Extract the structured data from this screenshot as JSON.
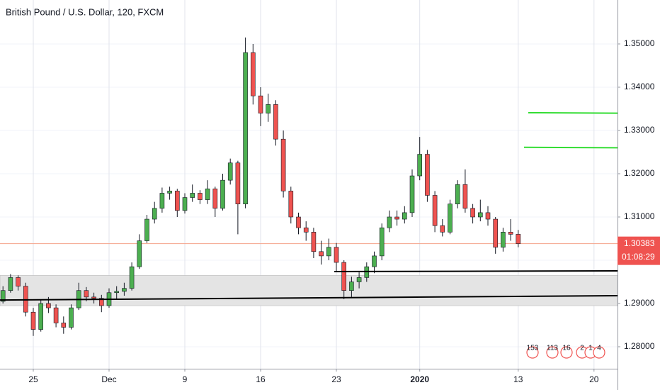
{
  "chart_data": {
    "type": "candlestick",
    "title": "British Pound / U.S. Dollar, 120, FXCM",
    "categories": [
      null,
      null,
      null,
      null,
      "25",
      null,
      null,
      null,
      null,
      null,
      null,
      null,
      null,
      null,
      "Dec",
      null,
      null,
      null,
      null,
      null,
      null,
      null,
      null,
      null,
      "9",
      null,
      null,
      null,
      null,
      null,
      null,
      null,
      null,
      null,
      "16",
      null,
      null,
      null,
      null,
      null,
      null,
      null,
      null,
      null,
      "23",
      null,
      null,
      null,
      null,
      null,
      null,
      null,
      null,
      null,
      null,
      "2020",
      null,
      null,
      null,
      null,
      null,
      null,
      null,
      null,
      null,
      null,
      null,
      null,
      "13",
      null,
      null,
      null,
      null,
      null,
      null,
      null,
      null,
      null,
      "20"
    ],
    "open": [
      1.2905,
      1.293,
      1.296,
      1.294,
      1.288,
      1.284,
      1.29,
      1.289,
      1.2855,
      1.2845,
      1.289,
      1.293,
      1.2915,
      1.2912,
      1.2895,
      1.2925,
      1.2928,
      1.2935,
      1.2985,
      1.3045,
      1.3095,
      1.312,
      1.3155,
      1.316,
      1.3115,
      1.3145,
      1.3155,
      1.314,
      1.3165,
      1.312,
      1.3185,
      1.3225,
      1.313,
      1.348,
      1.338,
      1.334,
      1.336,
      1.328,
      1.316,
      1.31,
      1.3075,
      1.3065,
      1.302,
      1.301,
      1.303,
      1.2995,
      1.293,
      1.295,
      1.296,
      1.2985,
      1.301,
      1.3075,
      1.31,
      1.3095,
      1.311,
      1.3195,
      1.3245,
      1.315,
      1.308,
      1.3065,
      1.313,
      1.3175,
      1.312,
      1.31,
      1.311,
      1.3095,
      1.303,
      1.3065,
      1.306,
      null,
      null,
      null,
      null,
      null,
      null,
      null,
      null,
      null,
      null
    ],
    "high": [
      1.294,
      1.2968,
      1.2965,
      1.2948,
      1.289,
      1.2908,
      1.2915,
      1.2898,
      1.287,
      1.2898,
      1.2948,
      1.2938,
      1.2925,
      1.292,
      1.2935,
      1.294,
      1.2948,
      1.2995,
      1.306,
      1.3105,
      1.3135,
      1.3168,
      1.317,
      1.3165,
      1.3155,
      1.3175,
      1.3162,
      1.3185,
      1.317,
      1.32,
      1.3235,
      1.323,
      1.3515,
      1.35,
      1.34,
      1.3385,
      1.337,
      1.33,
      1.317,
      1.311,
      1.309,
      1.3075,
      1.3045,
      1.305,
      1.304,
      1.3,
      1.2962,
      1.2972,
      1.2995,
      1.302,
      1.3085,
      1.3115,
      1.3115,
      1.3125,
      1.321,
      1.3285,
      1.3255,
      1.316,
      1.3095,
      1.314,
      1.3185,
      1.321,
      1.313,
      1.314,
      1.3125,
      1.31,
      1.3075,
      1.3095,
      1.307,
      null,
      null,
      null,
      null,
      null,
      null,
      null,
      null,
      null,
      null
    ],
    "low": [
      1.29,
      1.2925,
      1.293,
      1.287,
      1.2825,
      1.2835,
      1.2878,
      1.2845,
      1.283,
      1.284,
      1.2885,
      1.2905,
      1.29,
      1.288,
      1.289,
      1.291,
      1.2918,
      1.293,
      1.298,
      1.304,
      1.3085,
      1.311,
      1.314,
      1.31,
      1.3108,
      1.3135,
      1.313,
      1.313,
      1.31,
      1.3115,
      1.3175,
      1.306,
      1.312,
      1.336,
      1.331,
      1.332,
      1.3265,
      1.3145,
      1.3085,
      1.306,
      1.3045,
      1.3005,
      1.299,
      1.3,
      1.2975,
      1.291,
      1.2915,
      1.2935,
      1.295,
      1.297,
      1.3,
      1.3065,
      1.308,
      1.3085,
      1.31,
      1.3185,
      1.3135,
      1.3065,
      1.3055,
      1.306,
      1.312,
      1.311,
      1.3085,
      1.309,
      1.308,
      1.3015,
      1.302,
      1.3045,
      1.303,
      null,
      null,
      null,
      null,
      null,
      null,
      null,
      null,
      null,
      null
    ],
    "close": [
      1.293,
      1.296,
      1.294,
      1.288,
      1.284,
      1.29,
      1.289,
      1.2855,
      1.2845,
      1.289,
      1.293,
      1.2915,
      1.2912,
      1.2895,
      1.2925,
      1.2928,
      1.2935,
      1.2985,
      1.3045,
      1.3095,
      1.312,
      1.3155,
      1.316,
      1.3115,
      1.3145,
      1.3155,
      1.314,
      1.3165,
      1.312,
      1.3185,
      1.3225,
      1.313,
      1.348,
      1.338,
      1.334,
      1.336,
      1.328,
      1.316,
      1.31,
      1.3075,
      1.3065,
      1.302,
      1.301,
      1.303,
      1.2995,
      1.293,
      1.295,
      1.296,
      1.2985,
      1.301,
      1.3075,
      1.31,
      1.3095,
      1.311,
      1.3195,
      1.3245,
      1.315,
      1.308,
      1.3065,
      1.313,
      1.3175,
      1.312,
      1.31,
      1.311,
      1.3095,
      1.303,
      1.3065,
      1.306,
      1.30383,
      null,
      null,
      null,
      null,
      null,
      null,
      null,
      null,
      null,
      null
    ],
    "up_color": "#4caf50",
    "down_color": "#ef5350",
    "ylim": [
      1.27492,
      1.36016
    ],
    "yticks": [
      {
        "value": 1.28,
        "label": "1.28000"
      },
      {
        "value": 1.29,
        "label": "1.29000"
      },
      {
        "value": 1.3,
        "label": "1.30000"
      },
      {
        "value": 1.31,
        "label": "1.31000"
      },
      {
        "value": 1.32,
        "label": "1.32000"
      },
      {
        "value": 1.33,
        "label": "1.33000"
      },
      {
        "value": 1.34,
        "label": "1.34000"
      },
      {
        "value": 1.35,
        "label": "1.35000"
      }
    ],
    "grid": true,
    "last_price": 1.30383,
    "countdown": "01:08:29",
    "zone": [
      1.2895,
      1.2965
    ],
    "trendlines": [
      {
        "y": [
          1.2908,
          1.2918
        ],
        "color": "#000000"
      },
      {
        "y": [
          1.29738,
          1.29754
        ],
        "color": "#000000"
      },
      {
        "y": [
          1.3341,
          1.334
        ],
        "color": "#33dd33"
      },
      {
        "y": [
          1.3261,
          1.326
        ],
        "color": "#33dd33"
      }
    ],
    "event_markers": [
      "153",
      "113",
      "16",
      "2",
      "1",
      "4"
    ]
  }
}
